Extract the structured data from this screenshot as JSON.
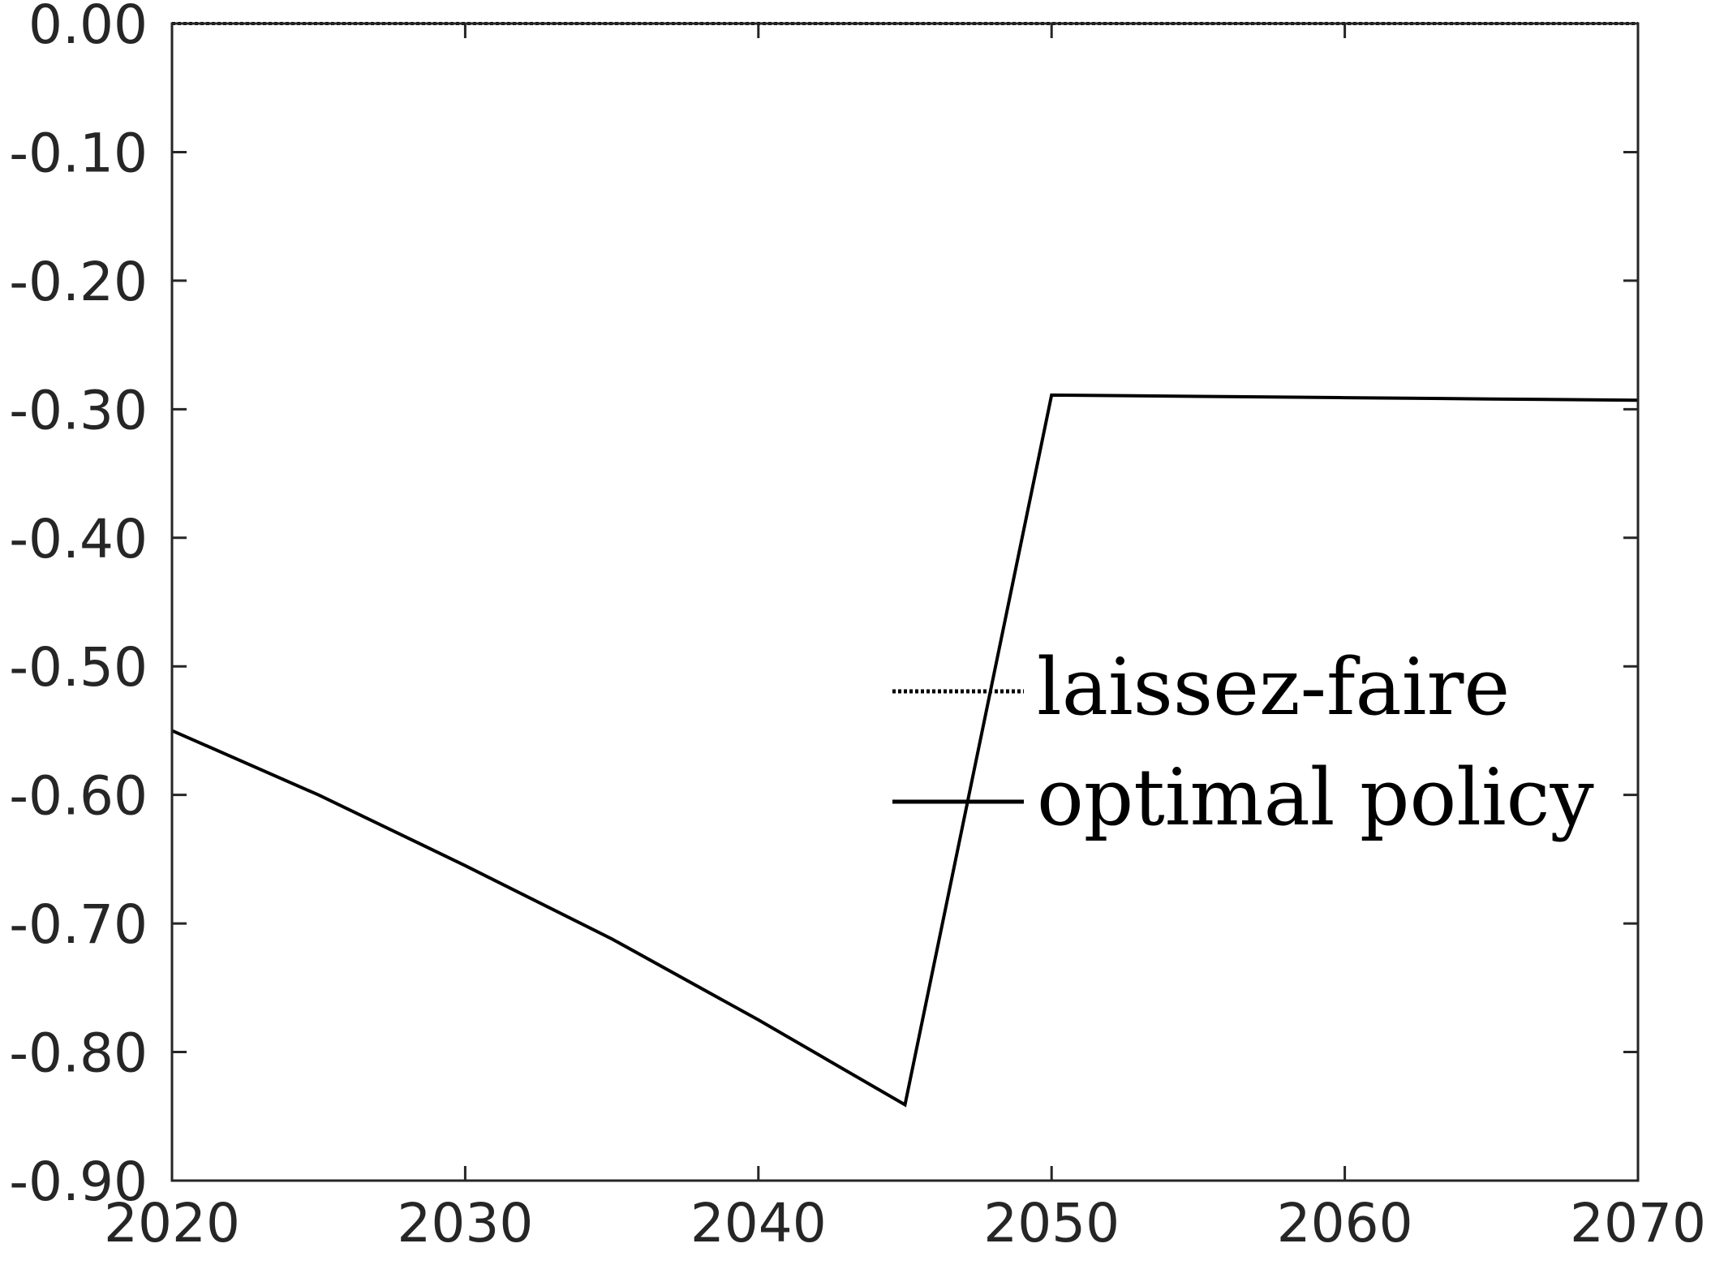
{
  "chart_data": {
    "type": "line",
    "title": "",
    "xlabel": "",
    "ylabel": "",
    "xlim": [
      2020,
      2070
    ],
    "ylim": [
      -0.9,
      0.0
    ],
    "xticks": [
      2020,
      2030,
      2040,
      2050,
      2060,
      2070
    ],
    "xtick_labels": [
      "2020",
      "2030",
      "2040",
      "2050",
      "2060",
      "2070"
    ],
    "yticks": [
      0.0,
      -0.1,
      -0.2,
      -0.3,
      -0.4,
      -0.5,
      -0.6,
      -0.7,
      -0.8,
      -0.9
    ],
    "ytick_labels": [
      "0.00",
      "-0.10",
      "-0.20",
      "-0.30",
      "-0.40",
      "-0.50",
      "-0.60",
      "-0.70",
      "-0.80",
      "-0.90"
    ],
    "grid": false,
    "legend_position": "right",
    "series": [
      {
        "name": "laissez-faire",
        "line_style": "dotted",
        "color": "#000000",
        "x": [
          2020,
          2025,
          2030,
          2035,
          2040,
          2045,
          2050,
          2055,
          2060,
          2065,
          2070
        ],
        "y": [
          0,
          0,
          0,
          0,
          0,
          0,
          0,
          0,
          0,
          0,
          0
        ]
      },
      {
        "name": "optimal policy",
        "line_style": "solid",
        "color": "#000000",
        "x": [
          2020,
          2025,
          2030,
          2035,
          2040,
          2045,
          2050,
          2055,
          2060,
          2065,
          2070
        ],
        "y": [
          -0.55,
          -0.6,
          -0.655,
          -0.712,
          -0.775,
          -0.841,
          -0.289,
          -0.29,
          -0.291,
          -0.292,
          -0.293
        ]
      }
    ]
  }
}
